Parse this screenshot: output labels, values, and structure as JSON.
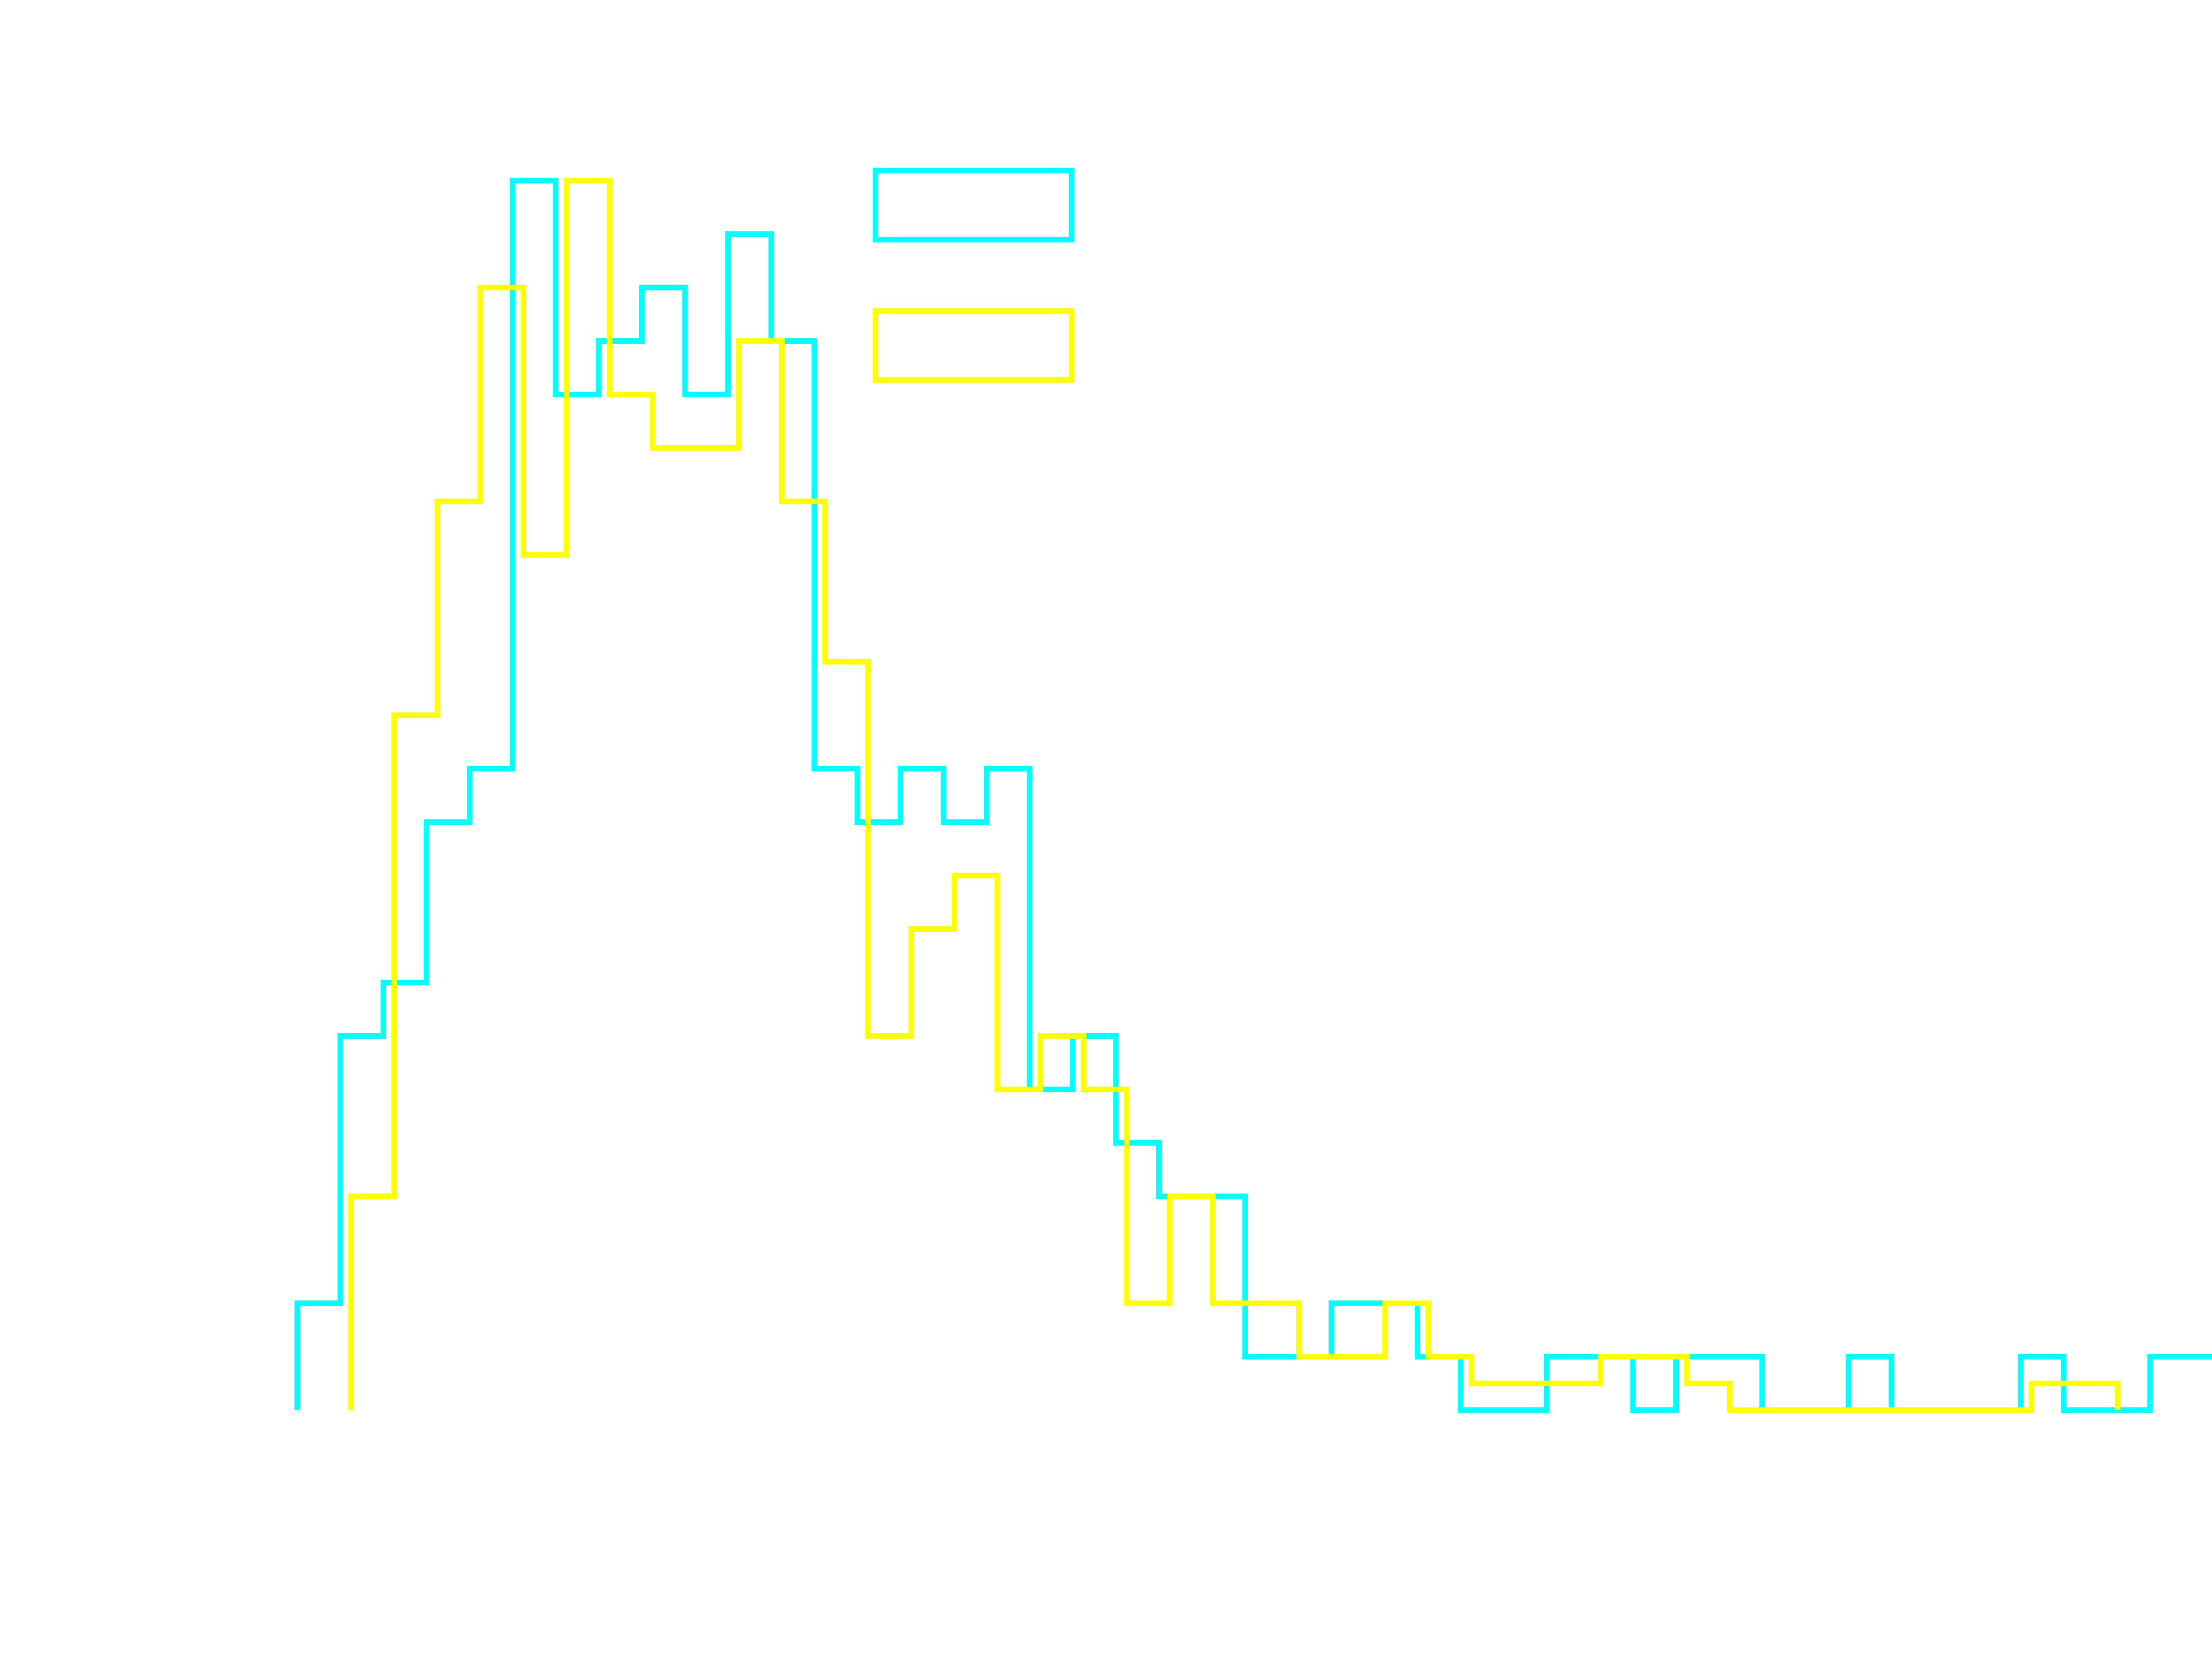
{
  "chart_data": {
    "type": "histogram-step",
    "title": "",
    "xlabel": "",
    "ylabel": "",
    "xlim": [
      0,
      63
    ],
    "ylim": [
      0,
      25
    ],
    "grid": false,
    "axes_visible": false,
    "legend_placement": "top-center",
    "bins_x": [
      0,
      1,
      2,
      3,
      4,
      5,
      6,
      7,
      8,
      9,
      10,
      11,
      12,
      13,
      14,
      15,
      16,
      17,
      18,
      19,
      20,
      21,
      22,
      23,
      24,
      25,
      26,
      27,
      28,
      29,
      30,
      31,
      32,
      33,
      34,
      35,
      36,
      37,
      38,
      39,
      40,
      41,
      42,
      43,
      44,
      45,
      46,
      47,
      48,
      49
    ],
    "series": [
      {
        "color": "#00ffff",
        "start_x": 0,
        "counts": [
          2,
          7,
          8,
          11,
          12,
          23,
          19,
          20,
          21,
          19,
          22,
          20,
          12,
          11,
          12,
          11,
          12,
          6,
          7,
          5,
          4,
          4,
          1,
          1,
          2,
          2,
          1,
          0,
          0,
          1,
          1,
          0,
          1,
          1,
          0,
          0,
          1,
          0,
          0,
          0,
          1,
          0,
          0,
          1,
          1,
          0,
          0,
          0,
          1
        ]
      },
      {
        "color": "#ffff00",
        "start_x": 1.25,
        "counts": [
          4,
          13,
          17,
          21,
          16,
          23,
          19,
          18,
          18,
          20,
          17,
          14,
          7,
          9,
          10,
          6,
          7,
          6,
          2,
          4,
          2,
          2,
          1,
          1,
          2,
          1,
          0.5,
          0.5,
          0.5,
          1,
          1,
          0.5,
          0,
          0,
          0,
          0,
          0,
          0,
          0,
          0.5,
          0.5
        ]
      }
    ]
  }
}
